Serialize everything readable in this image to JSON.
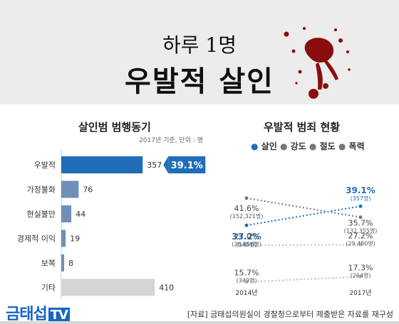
{
  "title": {
    "line1": "하루 1명",
    "line2": "우발적 살인"
  },
  "chart_data": [
    {
      "type": "bar",
      "title": "살인범 범행동기",
      "note": "2017년 기준, 단위 : 명",
      "categories": [
        "우발적",
        "가정불화",
        "현실불만",
        "경제적 이익",
        "보복",
        "기타"
      ],
      "values": [
        357,
        76,
        44,
        19,
        8,
        410
      ],
      "highlight": {
        "category": "우발적",
        "label": "39.1%"
      },
      "colors": {
        "highlight": "#1f6db8",
        "normal": "#6e8fb8",
        "other": "#d5d5d5"
      }
    },
    {
      "type": "line",
      "title": "우발적 범죄 현황",
      "x": [
        "2014년",
        "2017년"
      ],
      "legend": [
        "살인",
        "강도",
        "절도",
        "폭력"
      ],
      "series": [
        {
          "name": "살인",
          "values": [
            33.2,
            39.1
          ],
          "labels": [
            "33.2%",
            "39.1%"
          ],
          "counts": [
            "(345명)",
            "(357명)"
          ],
          "color": "#1e6fc0"
        },
        {
          "name": "강도",
          "values": [
            15.7,
            17.3
          ],
          "labels": [
            "15.7%",
            "17.3%"
          ],
          "counts": [
            "(349명)",
            "(264명)"
          ],
          "color": "#a9c3dc"
        },
        {
          "name": "절도",
          "values": [
            27.0,
            27.2
          ],
          "labels": [
            "27.0%",
            "27.2%"
          ],
          "counts": [
            "(26,856명)",
            "(29,480명)"
          ],
          "color": "#c4c4c4"
        },
        {
          "name": "폭력",
          "values": [
            41.6,
            35.7
          ],
          "labels": [
            "41.6%",
            "35.7%"
          ],
          "counts": [
            "(152,321명)",
            "(132,355명)"
          ],
          "color": "#777777"
        }
      ]
    }
  ],
  "footer": {
    "logo": "금태섭",
    "logo_tv": "TV",
    "source": "[자료] 금태섭의원실이 경찰청으로부터 제출받은 자료를 재구성"
  }
}
